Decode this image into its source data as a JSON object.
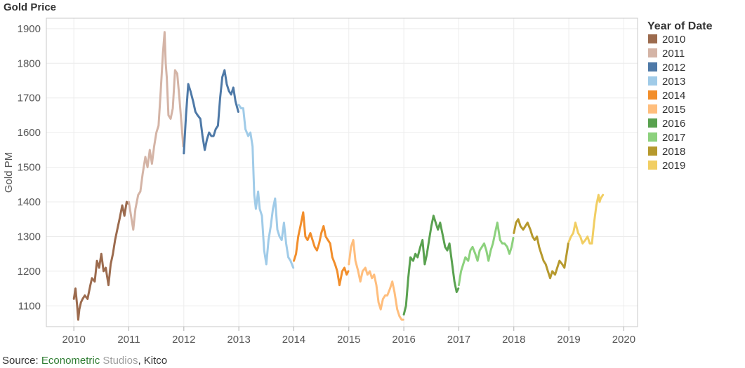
{
  "chart_data": {
    "type": "line",
    "title": "Gold Price",
    "xlabel": "",
    "ylabel": "Gold PM",
    "xlim": [
      2009.5,
      2020.25
    ],
    "ylim": [
      1040,
      1930
    ],
    "grid": true,
    "legend_position": "right",
    "legend_title": "Year of Date",
    "x_ticks": [
      2010,
      2011,
      2012,
      2013,
      2014,
      2015,
      2016,
      2017,
      2018,
      2019,
      2020
    ],
    "x_tick_labels": [
      "2010",
      "2011",
      "2012",
      "2013",
      "2014",
      "2015",
      "2016",
      "2017",
      "2018",
      "2019",
      "2020"
    ],
    "y_ticks": [
      1100,
      1200,
      1300,
      1400,
      1500,
      1600,
      1700,
      1800,
      1900
    ],
    "y_tick_labels": [
      "1100",
      "1200",
      "1300",
      "1400",
      "1500",
      "1600",
      "1700",
      "1800",
      "1900"
    ],
    "series": [
      {
        "name": "2010",
        "color": "#9c6b4e",
        "x": [
          2010.0,
          2010.03,
          2010.06,
          2010.08,
          2010.1,
          2010.13,
          2010.16,
          2010.2,
          2010.25,
          2010.3,
          2010.33,
          2010.38,
          2010.42,
          2010.46,
          2010.5,
          2010.54,
          2010.58,
          2010.63,
          2010.67,
          2010.71,
          2010.75,
          2010.79,
          2010.83,
          2010.88,
          2010.92,
          2010.96,
          2010.99
        ],
        "y": [
          1120,
          1150,
          1100,
          1060,
          1090,
          1110,
          1120,
          1130,
          1120,
          1160,
          1180,
          1170,
          1230,
          1210,
          1250,
          1200,
          1210,
          1160,
          1220,
          1250,
          1290,
          1320,
          1350,
          1390,
          1360,
          1400,
          1395
        ]
      },
      {
        "name": "2011",
        "color": "#d4b4a6",
        "x": [
          2011.0,
          2011.04,
          2011.08,
          2011.12,
          2011.17,
          2011.21,
          2011.25,
          2011.3,
          2011.34,
          2011.38,
          2011.42,
          2011.46,
          2011.5,
          2011.54,
          2011.58,
          2011.62,
          2011.65,
          2011.67,
          2011.69,
          2011.72,
          2011.76,
          2011.8,
          2011.84,
          2011.88,
          2011.92,
          2011.96,
          2011.99
        ],
        "y": [
          1400,
          1360,
          1320,
          1380,
          1420,
          1430,
          1480,
          1530,
          1500,
          1550,
          1510,
          1560,
          1600,
          1620,
          1720,
          1830,
          1890,
          1800,
          1760,
          1650,
          1640,
          1670,
          1780,
          1770,
          1700,
          1620,
          1560
        ]
      },
      {
        "name": "2012",
        "color": "#4e79a7",
        "x": [
          2012.0,
          2012.04,
          2012.08,
          2012.12,
          2012.17,
          2012.21,
          2012.25,
          2012.3,
          2012.34,
          2012.38,
          2012.42,
          2012.46,
          2012.5,
          2012.54,
          2012.58,
          2012.62,
          2012.66,
          2012.7,
          2012.74,
          2012.78,
          2012.82,
          2012.86,
          2012.9,
          2012.94,
          2012.99
        ],
        "y": [
          1540,
          1650,
          1740,
          1720,
          1690,
          1660,
          1650,
          1640,
          1590,
          1550,
          1580,
          1600,
          1590,
          1590,
          1610,
          1620,
          1700,
          1760,
          1780,
          1740,
          1720,
          1710,
          1730,
          1690,
          1660
        ]
      },
      {
        "name": "2013",
        "color": "#a0cbe8",
        "x": [
          2013.0,
          2013.04,
          2013.08,
          2013.12,
          2013.17,
          2013.21,
          2013.25,
          2013.28,
          2013.31,
          2013.35,
          2013.38,
          2013.42,
          2013.46,
          2013.5,
          2013.54,
          2013.58,
          2013.62,
          2013.66,
          2013.7,
          2013.74,
          2013.78,
          2013.82,
          2013.86,
          2013.9,
          2013.94,
          2013.99
        ],
        "y": [
          1680,
          1670,
          1670,
          1610,
          1590,
          1600,
          1560,
          1420,
          1380,
          1430,
          1380,
          1360,
          1260,
          1220,
          1290,
          1330,
          1380,
          1410,
          1320,
          1300,
          1290,
          1340,
          1280,
          1240,
          1230,
          1210
        ]
      },
      {
        "name": "2014",
        "color": "#f28e2b",
        "x": [
          2014.0,
          2014.04,
          2014.08,
          2014.12,
          2014.17,
          2014.21,
          2014.25,
          2014.3,
          2014.34,
          2014.38,
          2014.42,
          2014.46,
          2014.5,
          2014.54,
          2014.58,
          2014.62,
          2014.66,
          2014.7,
          2014.75,
          2014.79,
          2014.83,
          2014.88,
          2014.92,
          2014.96,
          2014.99
        ],
        "y": [
          1230,
          1250,
          1300,
          1330,
          1370,
          1300,
          1290,
          1310,
          1290,
          1270,
          1260,
          1280,
          1310,
          1330,
          1300,
          1290,
          1280,
          1240,
          1220,
          1200,
          1160,
          1200,
          1210,
          1190,
          1200
        ]
      },
      {
        "name": "2015",
        "color": "#ffbe7d",
        "x": [
          2015.0,
          2015.04,
          2015.08,
          2015.12,
          2015.17,
          2015.21,
          2015.25,
          2015.3,
          2015.34,
          2015.38,
          2015.42,
          2015.46,
          2015.5,
          2015.54,
          2015.58,
          2015.62,
          2015.66,
          2015.7,
          2015.75,
          2015.79,
          2015.83,
          2015.88,
          2015.92,
          2015.96,
          2015.99
        ],
        "y": [
          1220,
          1270,
          1290,
          1230,
          1200,
          1170,
          1200,
          1210,
          1190,
          1200,
          1180,
          1190,
          1160,
          1110,
          1090,
          1120,
          1130,
          1130,
          1150,
          1170,
          1140,
          1090,
          1070,
          1060,
          1060
        ]
      },
      {
        "name": "2016",
        "color": "#59a14f",
        "x": [
          2016.0,
          2016.04,
          2016.08,
          2016.12,
          2016.17,
          2016.21,
          2016.25,
          2016.3,
          2016.34,
          2016.38,
          2016.42,
          2016.46,
          2016.5,
          2016.54,
          2016.58,
          2016.62,
          2016.66,
          2016.7,
          2016.75,
          2016.79,
          2016.83,
          2016.88,
          2016.92,
          2016.96,
          2016.99
        ],
        "y": [
          1075,
          1100,
          1180,
          1240,
          1230,
          1250,
          1240,
          1270,
          1290,
          1220,
          1250,
          1290,
          1330,
          1360,
          1340,
          1320,
          1340,
          1310,
          1270,
          1260,
          1280,
          1220,
          1170,
          1140,
          1150
        ]
      },
      {
        "name": "2017",
        "color": "#8cd17d",
        "x": [
          2017.0,
          2017.04,
          2017.08,
          2017.12,
          2017.17,
          2017.21,
          2017.25,
          2017.3,
          2017.34,
          2017.38,
          2017.42,
          2017.46,
          2017.5,
          2017.54,
          2017.58,
          2017.62,
          2017.66,
          2017.7,
          2017.75,
          2017.79,
          2017.83,
          2017.88,
          2017.92,
          2017.96,
          2017.99
        ],
        "y": [
          1160,
          1200,
          1220,
          1240,
          1230,
          1260,
          1270,
          1250,
          1230,
          1260,
          1270,
          1280,
          1260,
          1230,
          1260,
          1280,
          1310,
          1340,
          1290,
          1280,
          1280,
          1270,
          1250,
          1270,
          1296
        ]
      },
      {
        "name": "2018",
        "color": "#b6992d",
        "x": [
          2018.0,
          2018.04,
          2018.08,
          2018.12,
          2018.17,
          2018.21,
          2018.25,
          2018.3,
          2018.34,
          2018.38,
          2018.42,
          2018.46,
          2018.5,
          2018.54,
          2018.58,
          2018.62,
          2018.66,
          2018.7,
          2018.75,
          2018.79,
          2018.83,
          2018.88,
          2018.92,
          2018.96,
          2018.99
        ],
        "y": [
          1310,
          1340,
          1350,
          1330,
          1320,
          1330,
          1340,
          1320,
          1300,
          1290,
          1300,
          1270,
          1250,
          1230,
          1220,
          1200,
          1180,
          1200,
          1190,
          1210,
          1230,
          1220,
          1210,
          1250,
          1280
        ]
      },
      {
        "name": "2019",
        "color": "#f1ce63",
        "x": [
          2019.0,
          2019.04,
          2019.08,
          2019.12,
          2019.17,
          2019.21,
          2019.25,
          2019.3,
          2019.34,
          2019.38,
          2019.42,
          2019.46,
          2019.5,
          2019.54,
          2019.56,
          2019.58,
          2019.6,
          2019.62
        ],
        "y": [
          1285,
          1300,
          1310,
          1340,
          1310,
          1300,
          1280,
          1290,
          1300,
          1280,
          1280,
          1340,
          1390,
          1420,
          1400,
          1410,
          1415,
          1420
        ]
      }
    ]
  },
  "source": {
    "prefix": "Source: ",
    "part1": "Econometric",
    "part2": " Studios",
    "suffix": ", Kitco"
  }
}
